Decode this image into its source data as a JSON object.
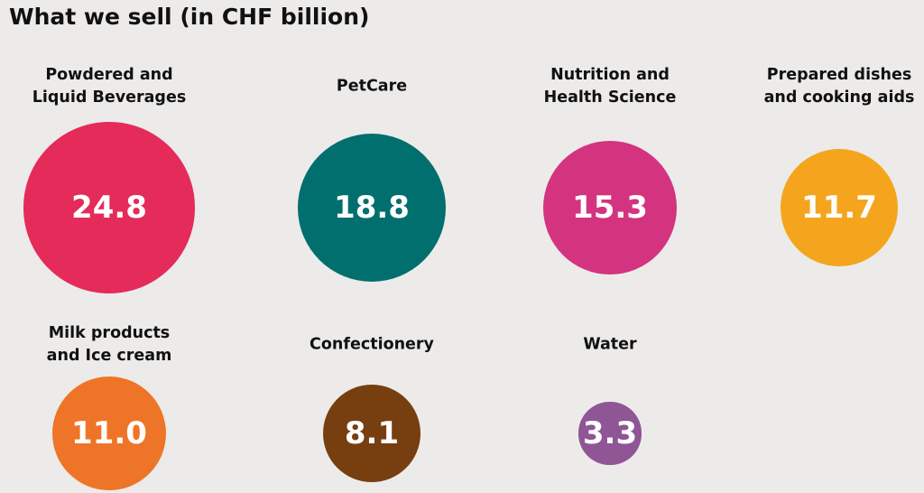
{
  "chart_data": {
    "type": "bubble",
    "title": "What we sell (in CHF billion)",
    "categories": [
      "Powdered and\nLiquid Beverages",
      "PetCare",
      "Nutrition and\nHealth Science",
      "Prepared dishes\nand cooking aids",
      "Milk products\nand Ice cream",
      "Confectionery",
      "Water"
    ],
    "values": [
      24.8,
      18.8,
      15.3,
      11.7,
      11.0,
      8.1,
      3.3
    ],
    "value_labels": [
      "24.8",
      "18.8",
      "15.3",
      "11.7",
      "11.0",
      "8.1",
      "3.3"
    ],
    "colors": [
      "#e52b5a",
      "#006f6e",
      "#d4337f",
      "#f5a51d",
      "#ee7527",
      "#773e10",
      "#8f5595"
    ]
  }
}
